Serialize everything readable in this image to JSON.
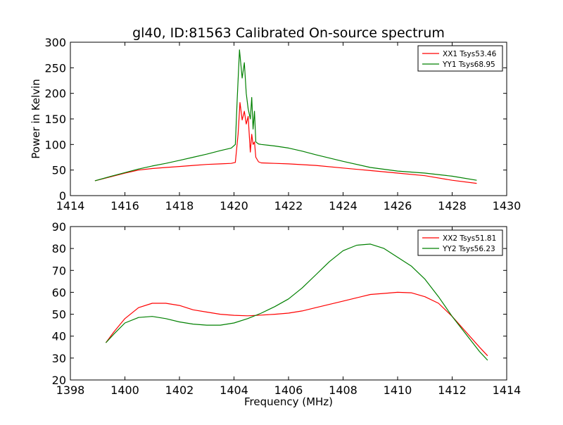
{
  "figure": {
    "title": "gl40, ID:81563 Calibrated On-source spectrum"
  },
  "chart_data": [
    {
      "type": "line",
      "title": "gl40, ID:81563 Calibrated On-source spectrum",
      "xlabel": "",
      "ylabel": "Power in Kelvin",
      "xlim": [
        1414,
        1430
      ],
      "ylim": [
        0,
        300
      ],
      "xticks": [
        1414,
        1416,
        1418,
        1420,
        1422,
        1424,
        1426,
        1428,
        1430
      ],
      "yticks": [
        0,
        50,
        100,
        150,
        200,
        250,
        300
      ],
      "grid": false,
      "legend_position": "top-right",
      "series": [
        {
          "name": "XX1 Tsys53.46",
          "color": "#ff0000",
          "x": [
            1414.9,
            1415.5,
            1416.0,
            1416.5,
            1417.0,
            1417.5,
            1418.0,
            1418.5,
            1419.0,
            1419.5,
            1419.9,
            1420.05,
            1420.15,
            1420.22,
            1420.3,
            1420.38,
            1420.45,
            1420.52,
            1420.6,
            1420.65,
            1420.7,
            1420.75,
            1420.8,
            1420.9,
            1421.0,
            1421.5,
            1422.0,
            1423.0,
            1424.0,
            1425.0,
            1426.0,
            1427.0,
            1428.0,
            1428.9
          ],
          "y": [
            29,
            37,
            44,
            50,
            53,
            55,
            57,
            59,
            61,
            62,
            63,
            65,
            120,
            182,
            148,
            165,
            140,
            155,
            85,
            120,
            100,
            105,
            75,
            66,
            64,
            63,
            62,
            59,
            54,
            49,
            44,
            39,
            30,
            24
          ]
        },
        {
          "name": "YY1 Tsys68.95",
          "color": "#008000",
          "x": [
            1414.9,
            1415.5,
            1416.0,
            1416.5,
            1417.0,
            1417.5,
            1418.0,
            1418.5,
            1419.0,
            1419.5,
            1419.9,
            1420.05,
            1420.12,
            1420.2,
            1420.3,
            1420.38,
            1420.45,
            1420.52,
            1420.6,
            1420.65,
            1420.7,
            1420.75,
            1420.8,
            1420.9,
            1421.0,
            1421.5,
            1422.0,
            1422.5,
            1423.0,
            1424.0,
            1425.0,
            1426.0,
            1427.0,
            1428.0,
            1428.9
          ],
          "y": [
            29,
            38,
            45,
            52,
            58,
            63,
            69,
            75,
            81,
            88,
            93,
            100,
            190,
            285,
            230,
            260,
            200,
            170,
            150,
            192,
            130,
            165,
            105,
            101,
            100,
            97,
            93,
            87,
            80,
            67,
            55,
            48,
            44,
            38,
            30
          ]
        }
      ]
    },
    {
      "type": "line",
      "title": "",
      "xlabel": "Frequency (MHz)",
      "ylabel": "",
      "xlim": [
        1398,
        1414
      ],
      "ylim": [
        20,
        90
      ],
      "xticks": [
        1398,
        1400,
        1402,
        1404,
        1406,
        1408,
        1410,
        1412,
        1414
      ],
      "yticks": [
        20,
        30,
        40,
        50,
        60,
        70,
        80,
        90
      ],
      "grid": false,
      "legend_position": "top-right",
      "series": [
        {
          "name": "XX2 Tsys51.81",
          "color": "#ff0000",
          "x": [
            1399.3,
            1399.6,
            1400.0,
            1400.5,
            1401.0,
            1401.5,
            1402.0,
            1402.5,
            1403.0,
            1403.5,
            1404.0,
            1404.5,
            1405.0,
            1405.5,
            1406.0,
            1406.5,
            1407.0,
            1407.5,
            1408.0,
            1408.5,
            1409.0,
            1409.5,
            1410.0,
            1410.5,
            1411.0,
            1411.5,
            1412.0,
            1412.5,
            1413.0,
            1413.3
          ],
          "y": [
            37,
            42,
            48,
            53,
            55,
            55,
            54,
            52,
            51,
            50,
            49.5,
            49.3,
            49.6,
            50,
            50.5,
            51.5,
            53,
            54.5,
            56,
            57.5,
            59,
            59.5,
            60,
            59.8,
            58,
            55,
            49,
            42,
            35,
            31
          ]
        },
        {
          "name": "YY2 Tsys56.23",
          "color": "#008000",
          "x": [
            1399.3,
            1399.6,
            1400.0,
            1400.5,
            1401.0,
            1401.5,
            1402.0,
            1402.5,
            1403.0,
            1403.5,
            1404.0,
            1404.5,
            1405.0,
            1405.5,
            1406.0,
            1406.5,
            1407.0,
            1407.5,
            1408.0,
            1408.5,
            1409.0,
            1409.5,
            1410.0,
            1410.5,
            1411.0,
            1411.5,
            1412.0,
            1412.5,
            1413.0,
            1413.3
          ],
          "y": [
            37,
            41,
            46,
            48.5,
            49,
            48,
            46.5,
            45.5,
            45,
            45,
            46,
            48,
            50.5,
            53.5,
            57,
            62,
            68,
            74,
            79,
            81.5,
            82,
            80,
            76,
            72,
            66,
            58,
            49,
            41,
            33,
            29
          ]
        }
      ]
    }
  ]
}
